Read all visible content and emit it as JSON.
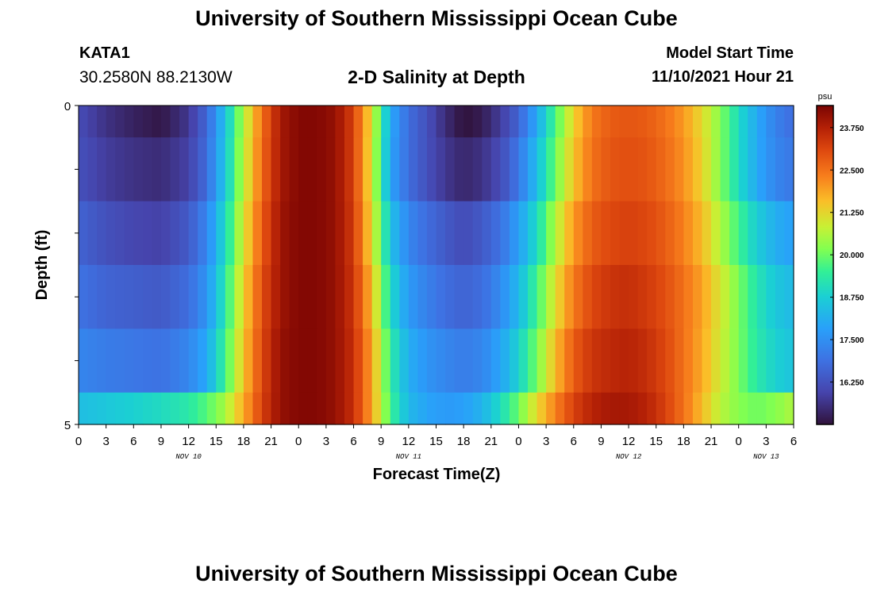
{
  "header": {
    "title": "University of Southern Mississippi Ocean Cube",
    "station": "KATA1",
    "coordinates": "30.2580N  88.2130W",
    "subtitle": "2-D Salinity at Depth",
    "model_start_label": "Model Start Time",
    "model_start_value": "11/10/2021 Hour 21"
  },
  "footer": {
    "title": "University of Southern Mississippi Ocean Cube"
  },
  "chart_data": {
    "type": "heatmap",
    "title": "2-D Salinity at Depth",
    "xlabel": "Forecast Time(Z)",
    "ylabel": "Depth (ft)",
    "x_tick_labels": [
      "0",
      "3",
      "6",
      "9",
      "12",
      "15",
      "18",
      "21",
      "0",
      "3",
      "6",
      "9",
      "12",
      "15",
      "18",
      "21",
      "0",
      "3",
      "6",
      "9",
      "12",
      "15",
      "18",
      "21",
      "0",
      "3",
      "6"
    ],
    "date_labels": [
      {
        "label": "NOV 10",
        "hour_index": 12
      },
      {
        "label": "NOV 11",
        "hour_index": 36
      },
      {
        "label": "NOV 12",
        "hour_index": 60
      },
      {
        "label": "NOV 13",
        "hour_index": 75
      }
    ],
    "x_range_hours": [
      0,
      78
    ],
    "y_tick_labels": [
      {
        "label": "0",
        "depth": 0
      },
      {
        "label": "5",
        "depth": 5
      }
    ],
    "y_range_ft": [
      0,
      5
    ],
    "depth_layers_ft": [
      0,
      0.5,
      1.5,
      2.5,
      3.5,
      4.5,
      5
    ],
    "colorbar": {
      "unit": "psu",
      "range": [
        15.0,
        24.4
      ],
      "tick_labels": [
        "23.750",
        "22.500",
        "21.250",
        "20.000",
        "18.750",
        "17.500",
        "16.250"
      ],
      "tick_values": [
        23.75,
        22.5,
        21.25,
        20.0,
        18.75,
        17.5,
        16.25
      ]
    },
    "salinity_profile_psu": {
      "note_hours": "values at forecast hour (rows = depth layers top to bottom)",
      "hours": [
        0,
        3,
        6,
        9,
        12,
        14,
        16,
        18,
        20,
        22,
        24,
        26,
        28,
        30,
        32,
        34,
        36,
        38,
        40,
        42,
        44,
        46,
        48,
        50,
        52,
        54,
        56,
        58,
        60,
        62,
        64,
        66,
        68,
        70,
        72,
        74,
        76,
        78
      ],
      "layers": [
        [
          16.1,
          15.6,
          15.3,
          15.1,
          15.7,
          16.7,
          18.5,
          20.6,
          22.5,
          23.9,
          24.3,
          24.3,
          24.1,
          23.2,
          21.1,
          18.0,
          16.8,
          16.2,
          15.5,
          15.0,
          15.2,
          15.8,
          16.6,
          18.0,
          19.7,
          21.3,
          22.4,
          22.8,
          22.9,
          22.8,
          22.5,
          22.0,
          21.2,
          20.2,
          19.0,
          18.0,
          17.2,
          16.8
        ],
        [
          16.2,
          15.8,
          15.6,
          15.5,
          15.9,
          16.8,
          18.6,
          20.7,
          22.6,
          23.9,
          24.3,
          24.3,
          24.1,
          23.2,
          21.0,
          17.9,
          16.8,
          16.2,
          15.7,
          15.4,
          15.6,
          16.1,
          17.0,
          18.4,
          20.0,
          21.5,
          22.5,
          22.9,
          23.0,
          22.9,
          22.6,
          22.1,
          21.3,
          20.2,
          19.0,
          18.0,
          17.3,
          17.0
        ],
        [
          16.6,
          16.2,
          16.0,
          15.9,
          16.4,
          17.3,
          19.0,
          21.0,
          22.8,
          24.0,
          24.3,
          24.3,
          24.1,
          23.3,
          21.2,
          18.5,
          17.3,
          16.8,
          16.4,
          16.1,
          16.4,
          16.9,
          17.8,
          19.0,
          20.6,
          22.0,
          22.8,
          23.1,
          23.2,
          23.1,
          22.8,
          22.3,
          21.6,
          20.6,
          19.6,
          18.7,
          18.1,
          17.8
        ],
        [
          16.9,
          16.6,
          16.5,
          16.4,
          16.8,
          17.6,
          19.3,
          21.3,
          23.0,
          24.0,
          24.3,
          24.3,
          24.1,
          23.4,
          21.6,
          19.0,
          17.7,
          17.2,
          16.8,
          16.6,
          16.8,
          17.4,
          18.3,
          19.6,
          21.1,
          22.4,
          23.1,
          23.4,
          23.5,
          23.3,
          23.0,
          22.5,
          21.9,
          21.0,
          20.1,
          19.2,
          18.6,
          18.3
        ],
        [
          17.3,
          17.1,
          17.0,
          16.9,
          17.3,
          18.0,
          19.6,
          21.5,
          23.1,
          24.1,
          24.3,
          24.3,
          24.1,
          23.5,
          21.9,
          19.4,
          18.1,
          17.6,
          17.3,
          17.1,
          17.3,
          17.9,
          18.8,
          20.1,
          21.6,
          22.8,
          23.4,
          23.6,
          23.7,
          23.5,
          23.1,
          22.5,
          21.8,
          20.9,
          20.1,
          19.3,
          18.8,
          18.5
        ],
        [
          18.4,
          18.6,
          18.8,
          19.0,
          19.3,
          19.8,
          20.5,
          21.8,
          23.2,
          24.1,
          24.3,
          24.3,
          24.1,
          23.5,
          21.9,
          19.6,
          18.3,
          17.9,
          17.7,
          17.8,
          18.2,
          19.0,
          20.0,
          21.2,
          22.3,
          23.2,
          23.7,
          23.9,
          23.9,
          23.7,
          23.2,
          22.5,
          21.6,
          20.7,
          20.2,
          20.0,
          20.2,
          20.6
        ]
      ]
    }
  }
}
